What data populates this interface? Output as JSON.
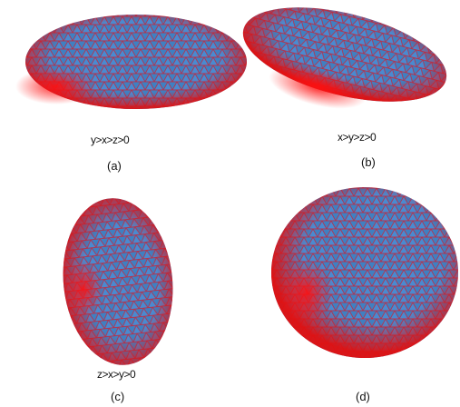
{
  "panels": [
    {
      "id": "a",
      "condition": "y>x>z>0",
      "caption": "(a)"
    },
    {
      "id": "b",
      "condition": "x>y>z>0",
      "caption": "(b)"
    },
    {
      "id": "c",
      "condition": "z>x>y>0",
      "caption": "(c)"
    },
    {
      "id": "d",
      "condition": "",
      "caption": "(d)"
    }
  ],
  "colors": {
    "mesh_blue": "#3d7fbf",
    "mesh_red": "#e01010"
  }
}
